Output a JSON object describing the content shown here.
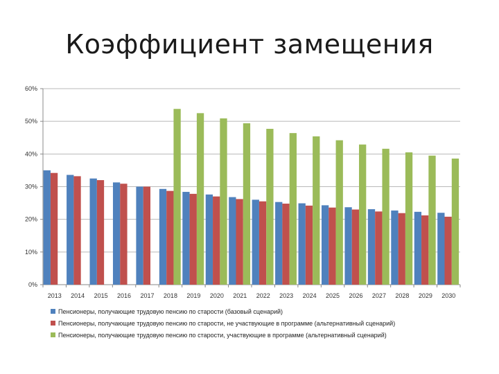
{
  "chart_data": {
    "type": "bar",
    "title": "Коэффициент замещения",
    "xlabel": "",
    "ylabel": "",
    "ylim": [
      0,
      60
    ],
    "y_ticks": [
      "0%",
      "10%",
      "20%",
      "30%",
      "40%",
      "50%",
      "60%"
    ],
    "grid": true,
    "legend_position": "bottom",
    "categories": [
      "2013",
      "2014",
      "2015",
      "2016",
      "2017",
      "2018",
      "2019",
      "2020",
      "2021",
      "2022",
      "2023",
      "2024",
      "2025",
      "2026",
      "2027",
      "2028",
      "2029",
      "2030"
    ],
    "series": [
      {
        "name": "Пенсионеры, получающие трудовую пенсию по старости (базовый сценарий)",
        "color": "#4F81BD",
        "values": [
          35.0,
          33.6,
          32.5,
          31.3,
          30.0,
          29.3,
          28.4,
          27.6,
          26.8,
          26.0,
          25.3,
          24.9,
          24.3,
          23.7,
          23.1,
          22.7,
          22.3,
          22.0
        ]
      },
      {
        "name": "Пенсионеры, получающие трудовую пенсию по старости, не участвующие в программе (альтернативный сценарий)",
        "color": "#C0504D",
        "values": [
          34.2,
          33.2,
          32.0,
          30.9,
          30.0,
          28.7,
          27.8,
          27.0,
          26.2,
          25.5,
          24.8,
          24.2,
          23.6,
          23.0,
          22.4,
          21.9,
          21.2,
          20.8
        ]
      },
      {
        "name": "Пенсионеры, получающие трудовую пенсию по старости, участвующие в программе (альтернативный сценарий)",
        "color": "#9BBB59",
        "values": [
          null,
          null,
          null,
          null,
          null,
          53.8,
          52.5,
          50.9,
          49.4,
          47.7,
          46.4,
          45.4,
          44.2,
          42.9,
          41.6,
          40.5,
          39.5,
          38.6
        ]
      }
    ]
  }
}
